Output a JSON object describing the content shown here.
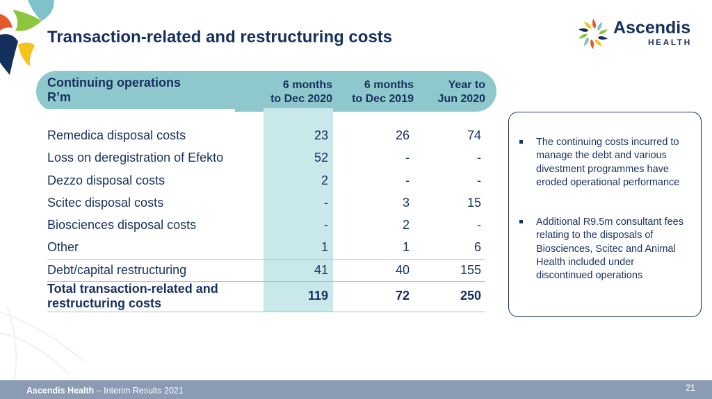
{
  "title": "Transaction-related and restructuring costs",
  "logo": {
    "name": "Ascendis",
    "sub": "HEALTH"
  },
  "table": {
    "header_label_line1": "Continuing operations",
    "header_label_line2": "R’m",
    "columns": [
      {
        "line1": "6 months",
        "line2": "to Dec 2020"
      },
      {
        "line1": "6 months",
        "line2": "to Dec 2019"
      },
      {
        "line1": "Year to",
        "line2": "Jun 2020"
      }
    ],
    "rows": [
      {
        "label": "Remedica disposal costs",
        "values": [
          "23",
          "26",
          "74"
        ]
      },
      {
        "label": "Loss on deregistration of Efekto",
        "values": [
          "52",
          "-",
          "-"
        ]
      },
      {
        "label": "Dezzo disposal costs",
        "values": [
          "2",
          "-",
          "-"
        ]
      },
      {
        "label": "Scitec disposal costs",
        "values": [
          "-",
          "3",
          "15"
        ]
      },
      {
        "label": "Biosciences disposal costs",
        "values": [
          "-",
          "2",
          "-"
        ]
      },
      {
        "label": "Other",
        "values": [
          "1",
          "1",
          "6"
        ]
      },
      {
        "label": "Debt/capital restructuring",
        "values": [
          "41",
          "40",
          "155"
        ]
      }
    ],
    "total": {
      "label_line1": "Total transaction-related and",
      "label_line2": "restructuring costs",
      "values": [
        "119",
        "72",
        "250"
      ]
    }
  },
  "notes": [
    "The continuing costs incurred to manage the debt and various divestment programmes have eroded operational performance",
    "Additional R9.5m consultant fees relating to the disposals of Biosciences, Scitec and Animal Health included under discontinued operations"
  ],
  "footer": {
    "brand": "Ascendis Health",
    "subtitle": " – Interim Results 2021",
    "page": "21"
  },
  "colors": {
    "navy": "#16305e",
    "teal_header": "#8fc8cc",
    "teal_band": "#c8e8e9",
    "footer_bar": "#8a9bb3"
  }
}
